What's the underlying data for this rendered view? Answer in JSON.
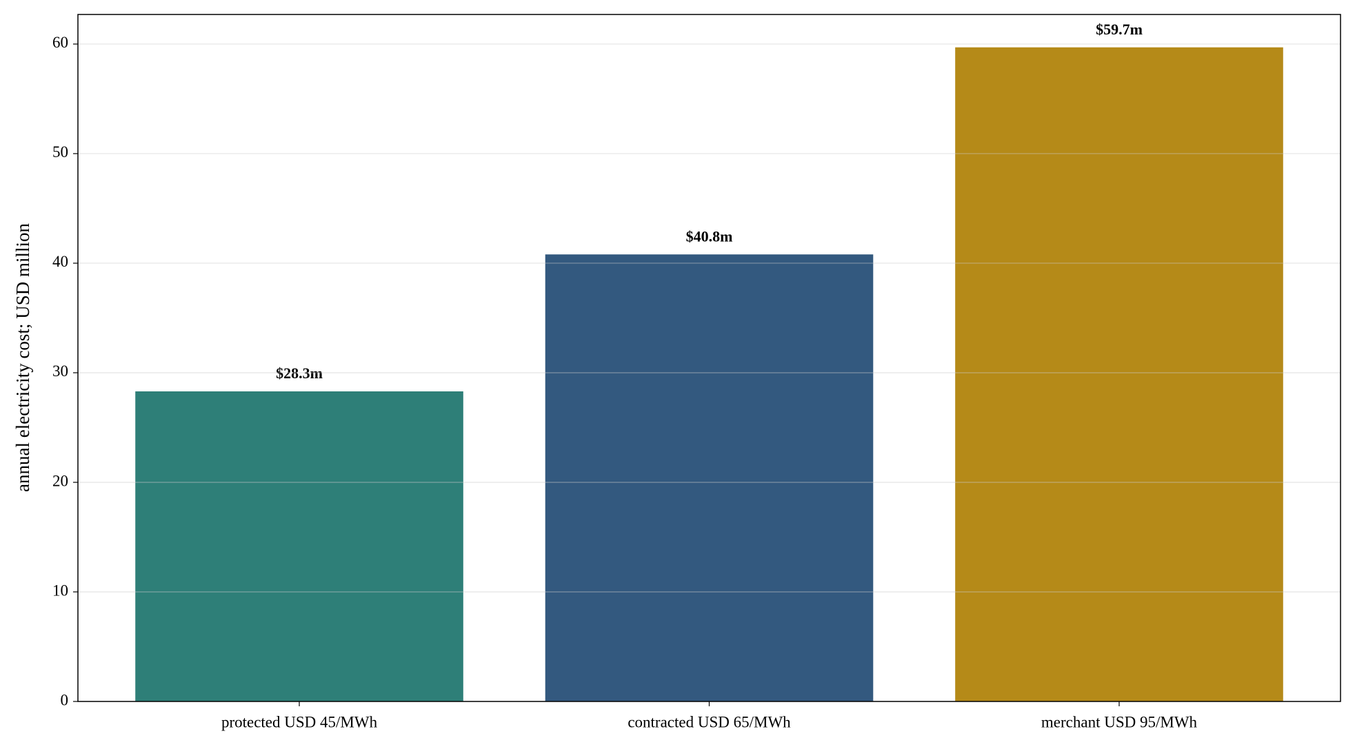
{
  "chart_data": {
    "type": "bar",
    "y_label": "annual electricity cost; USD million",
    "categories": [
      "protected USD 45/MWh",
      "contracted USD 65/MWh",
      "merchant USD 95/MWh"
    ],
    "values": [
      28.3,
      40.8,
      59.7
    ],
    "value_labels": [
      "$28.3m",
      "$40.8m",
      "$59.7m"
    ],
    "colors": [
      "#2e7f78",
      "#33597f",
      "#b58a18"
    ],
    "ylim": [
      0,
      62.7
    ],
    "yticks": [
      0,
      10,
      20,
      30,
      40,
      50,
      60
    ],
    "grid": true
  }
}
